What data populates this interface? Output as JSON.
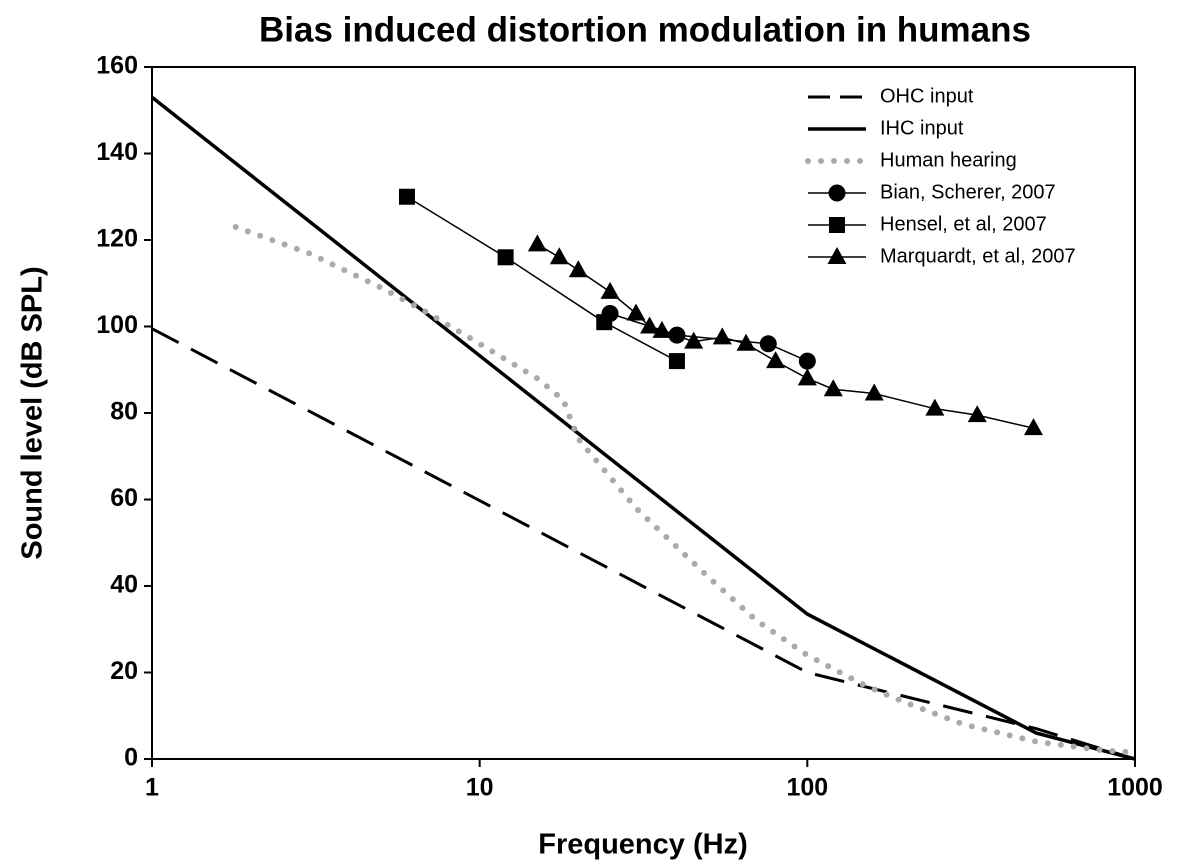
{
  "chart_data": {
    "type": "line",
    "title": "Bias induced distortion modulation in humans",
    "xlabel": "Frequency (Hz)",
    "ylabel": "Sound level (dB SPL)",
    "xscale": "log",
    "xlim": [
      1,
      1000
    ],
    "xticks": [
      1,
      10,
      100,
      1000
    ],
    "ylim": [
      0,
      160
    ],
    "yticks": [
      0,
      20,
      40,
      60,
      80,
      100,
      120,
      140,
      160
    ],
    "legend": "upper right",
    "series": [
      {
        "name": "OHC input",
        "color": "#000000",
        "style": "dashed",
        "marker": "none",
        "x": [
          1,
          100,
          500,
          1000
        ],
        "values": [
          99.5,
          20,
          7,
          0
        ]
      },
      {
        "name": "IHC input",
        "color": "#000000",
        "style": "solid",
        "marker": "none",
        "x": [
          1,
          100,
          500,
          1000
        ],
        "values": [
          153,
          33.5,
          6,
          0
        ]
      },
      {
        "name": "Human hearing",
        "color": "#aaaaaa",
        "style": "dotted",
        "marker": "none",
        "x": [
          1.8,
          3,
          5,
          7,
          10,
          15,
          18,
          20,
          30,
          50,
          70,
          100,
          150,
          200,
          300,
          500,
          800,
          1000
        ],
        "values": [
          123,
          117,
          109,
          103,
          96,
          88,
          83,
          74,
          58,
          42,
          32,
          24,
          17,
          13,
          8,
          4,
          2,
          1.5
        ]
      },
      {
        "name": "Bian, Scherer, 2007",
        "color": "#000000",
        "style": "thin",
        "marker": "circle",
        "x": [
          25,
          40,
          76,
          100
        ],
        "values": [
          103,
          98,
          96,
          92
        ]
      },
      {
        "name": "Hensel, et al, 2007",
        "color": "#000000",
        "style": "thin",
        "marker": "square",
        "x": [
          6,
          12,
          24,
          40
        ],
        "values": [
          130,
          116,
          101,
          92
        ]
      },
      {
        "name": "Marquardt, et al, 2007",
        "color": "#000000",
        "style": "thin",
        "marker": "triangle",
        "x": [
          15,
          17.5,
          20,
          25,
          30,
          33,
          36,
          45,
          55,
          65,
          80,
          100,
          120,
          160,
          245,
          330,
          490
        ],
        "values": [
          119,
          116,
          113,
          108,
          103,
          100,
          99,
          96.5,
          97.5,
          96,
          92,
          88,
          85.5,
          84.5,
          81,
          79.5,
          76.5
        ]
      }
    ]
  }
}
